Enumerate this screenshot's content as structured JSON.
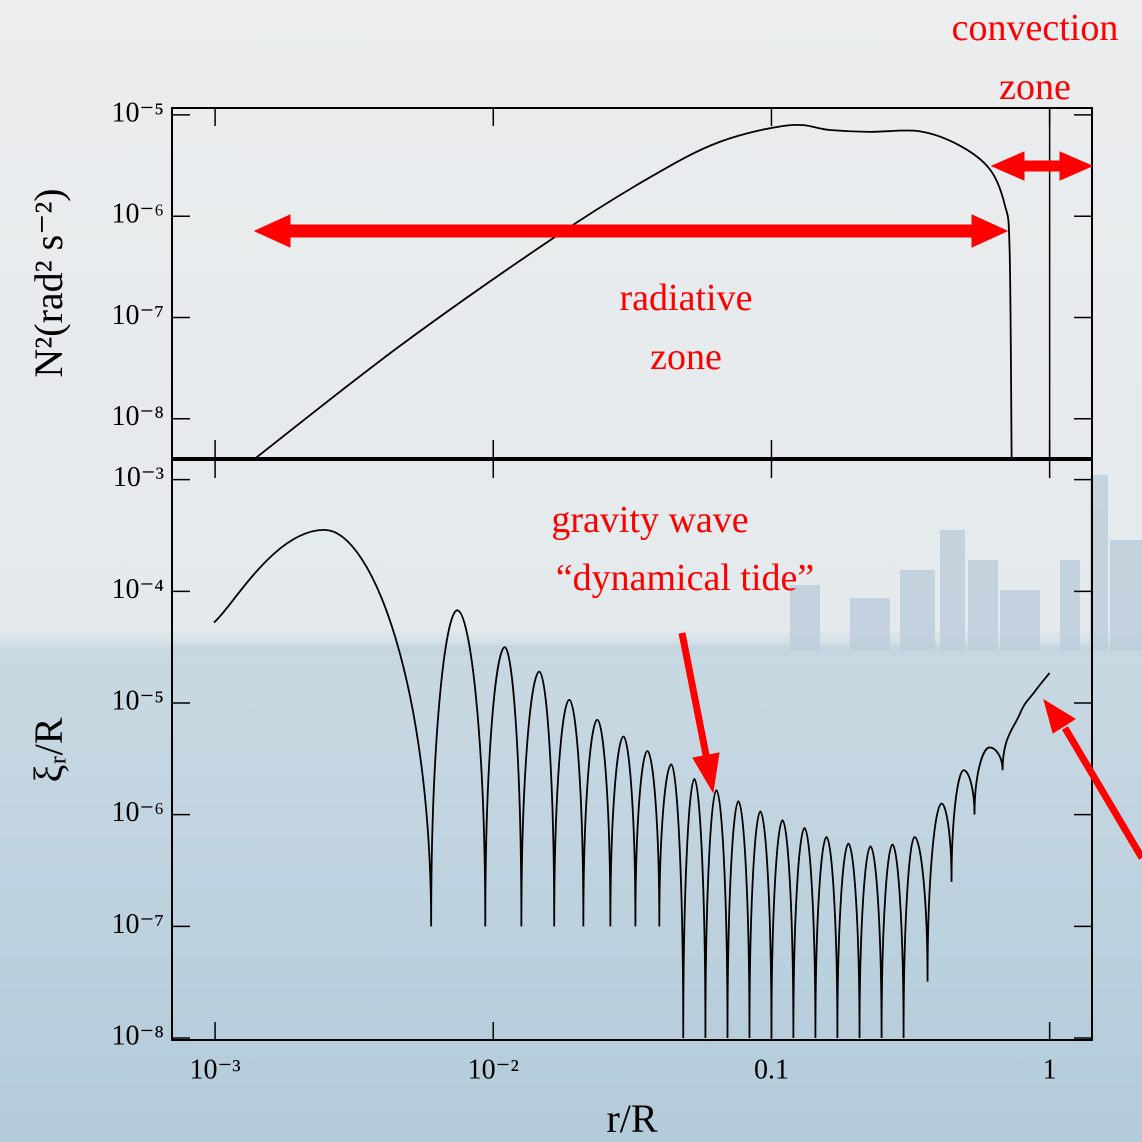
{
  "chart_data": [
    {
      "type": "line",
      "ylabel": "N²(rad² s⁻²)",
      "log_x": true,
      "log_y": true,
      "xlim": [
        0.0007,
        1.42
      ],
      "ylim": [
        4.1e-09,
        1.17e-05
      ],
      "yticks": [
        {
          "value": 1e-05,
          "label": "10⁻⁵"
        },
        {
          "value": 1e-06,
          "label": "10⁻⁶"
        },
        {
          "value": 1e-07,
          "label": "10⁻⁷"
        },
        {
          "value": 1e-08,
          "label": "10⁻⁸"
        }
      ],
      "vlines": [
        1
      ],
      "series": [
        {
          "color": "#000000",
          "x": [
            0.0014,
            0.0046,
            0.0166,
            0.0364,
            0.065,
            0.116,
            0.162,
            0.225,
            0.34,
            0.474,
            0.61,
            0.69,
            0.718,
            0.73
          ],
          "values": [
            4.1e-09,
            5.2e-08,
            6.2e-07,
            2.4e-06,
            5.4e-06,
            7.9e-06,
            7.1e-06,
            6.8e-06,
            6.9e-06,
            5e-06,
            2.9e-06,
            1.29e-06,
            4.6e-07,
            4.1e-09
          ]
        }
      ],
      "annotation_color": "#ff0000",
      "annotations": [
        [
          "radiative",
          "zone"
        ],
        [
          "convection",
          "zone"
        ]
      ]
    },
    {
      "type": "line",
      "xlabel": "r/R",
      "ylabel": "ξᵣ/R",
      "log_x": true,
      "log_y": true,
      "xlim": [
        0.0007,
        1.42
      ],
      "ylim": [
        9.6e-09,
        0.0015
      ],
      "xticks": [
        {
          "value": 0.001,
          "label": "10⁻³"
        },
        {
          "value": 0.01,
          "label": "10⁻²"
        },
        0.1,
        1
      ],
      "yticks": [
        {
          "value": 0.001,
          "label": "10⁻³"
        },
        {
          "value": 0.0001,
          "label": "10⁻⁴"
        },
        {
          "value": 1e-05,
          "label": "10⁻⁵"
        },
        {
          "value": 1e-06,
          "label": "10⁻⁶"
        },
        {
          "value": 1e-07,
          "label": "10⁻⁷"
        },
        {
          "value": 1e-08,
          "label": "10⁻⁸"
        }
      ],
      "series": [
        {
          "color": "#000000",
          "x": [
            0.00099,
            0.00247,
            0.00598,
            0.00742,
            0.00936,
            0.011,
            0.01262,
            0.01464,
            0.01656,
            0.01876,
            0.02108,
            0.02366,
            0.02636,
            0.02937,
            0.03243,
            0.0358,
            0.03953,
            0.04365,
            0.04819,
            0.05282,
            0.05789,
            0.06341,
            0.0695,
            0.07606,
            0.08336,
            0.0912,
            0.1,
            0.1096,
            0.1199,
            0.1315,
            0.1439,
            0.1577,
            0.1726,
            0.1891,
            0.2073,
            0.227,
            0.2488,
            0.2723,
            0.2985,
            0.3268,
            0.364,
            0.409,
            0.444,
            0.4908,
            0.537,
            0.6083,
            0.6776,
            0.7799,
            0.883,
            1
          ],
          "values": [
            5.25e-05,
            0.000355,
            1e-07,
            6.76e-05,
            1e-07,
            3.16e-05,
            1e-07,
            1.91e-05,
            1e-07,
            1.07e-05,
            1e-07,
            7.08e-06,
            1e-07,
            5.01e-06,
            1e-07,
            3.72e-06,
            1e-07,
            2.82e-06,
            1e-08,
            2.09e-06,
            1e-08,
            1.66e-06,
            1e-08,
            1.32e-06,
            1e-08,
            1.07e-06,
            1e-08,
            8.9e-07,
            1e-08,
            7.6e-07,
            1e-08,
            6.3e-07,
            1e-08,
            5.5e-07,
            1e-08,
            5.2e-07,
            1e-08,
            5.4e-07,
            1e-08,
            6.3e-07,
            3.2e-08,
            1.26e-06,
            2.5e-07,
            2.5e-06,
            1e-06,
            4e-06,
            2.5e-06,
            7.9e-06,
            1.26e-05,
            1.86e-05
          ]
        }
      ],
      "annotation_color": "#ff0000",
      "annotations": [
        [
          "gravity wave",
          "“dynamical tide”"
        ]
      ]
    }
  ]
}
